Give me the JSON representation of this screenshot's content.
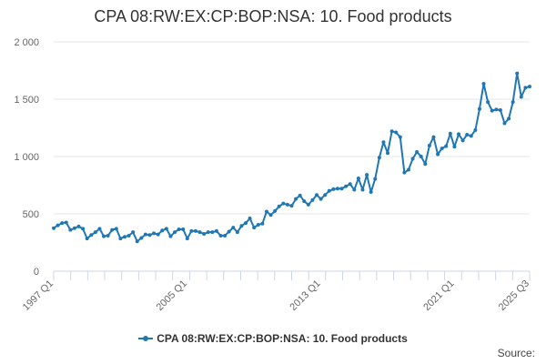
{
  "title": "CPA 08:RW:EX:CP:BOP:NSA: 10. Food products",
  "legend_label": "CPA 08:RW:EX:CP:BOP:NSA: 10. Food products",
  "source_label": "Source:",
  "colors": {
    "series": "#1f77b4",
    "grid": "#e6e6e6",
    "axis": "#ccd6eb",
    "text": "#666666"
  },
  "chart_data": {
    "type": "line",
    "title": "CPA 08:RW:EX:CP:BOP:NSA: 10. Food products",
    "xlabel": "",
    "ylabel": "",
    "ylim": [
      0,
      2000
    ],
    "yticks": [
      0,
      500,
      1000,
      1500,
      2000
    ],
    "ytick_labels": [
      "0",
      "500",
      "1 000",
      "1 500",
      "2 000"
    ],
    "xtick_labels": [
      "1997 Q1",
      "2005 Q1",
      "2013 Q1",
      "2021 Q1",
      "2025 Q3"
    ],
    "xtick_minor_count": 28,
    "x_start": "1997 Q1",
    "x_end": "2025 Q3",
    "grid": true,
    "legend_position": "bottom",
    "series": [
      {
        "name": "CPA 08:RW:EX:CP:BOP:NSA: 10. Food products",
        "x": [
          "1997 Q1",
          "1997 Q2",
          "1997 Q3",
          "1997 Q4",
          "1998 Q1",
          "1998 Q2",
          "1998 Q3",
          "1998 Q4",
          "1999 Q1",
          "1999 Q2",
          "1999 Q3",
          "1999 Q4",
          "2000 Q1",
          "2000 Q2",
          "2000 Q3",
          "2000 Q4",
          "2001 Q1",
          "2001 Q2",
          "2001 Q3",
          "2001 Q4",
          "2002 Q1",
          "2002 Q2",
          "2002 Q3",
          "2002 Q4",
          "2003 Q1",
          "2003 Q2",
          "2003 Q3",
          "2003 Q4",
          "2004 Q1",
          "2004 Q2",
          "2004 Q3",
          "2004 Q4",
          "2005 Q1",
          "2005 Q2",
          "2005 Q3",
          "2005 Q4",
          "2006 Q1",
          "2006 Q2",
          "2006 Q3",
          "2006 Q4",
          "2007 Q1",
          "2007 Q2",
          "2007 Q3",
          "2007 Q4",
          "2008 Q1",
          "2008 Q2",
          "2008 Q3",
          "2008 Q4",
          "2009 Q1",
          "2009 Q2",
          "2009 Q3",
          "2009 Q4",
          "2010 Q1",
          "2010 Q2",
          "2010 Q3",
          "2010 Q4",
          "2011 Q1",
          "2011 Q2",
          "2011 Q3",
          "2011 Q4",
          "2012 Q1",
          "2012 Q2",
          "2012 Q3",
          "2012 Q4",
          "2013 Q1",
          "2013 Q2",
          "2013 Q3",
          "2013 Q4",
          "2014 Q1",
          "2014 Q2",
          "2014 Q3",
          "2014 Q4",
          "2015 Q1",
          "2015 Q2",
          "2015 Q3",
          "2015 Q4",
          "2016 Q1",
          "2016 Q2",
          "2016 Q3",
          "2016 Q4",
          "2017 Q1",
          "2017 Q2",
          "2017 Q3",
          "2017 Q4",
          "2018 Q1",
          "2018 Q2",
          "2018 Q3",
          "2018 Q4",
          "2019 Q1",
          "2019 Q2",
          "2019 Q3",
          "2019 Q4",
          "2020 Q1",
          "2020 Q2",
          "2020 Q3",
          "2020 Q4",
          "2021 Q1",
          "2021 Q2",
          "2021 Q3",
          "2021 Q4",
          "2022 Q1",
          "2022 Q2",
          "2022 Q3",
          "2022 Q4",
          "2023 Q1",
          "2023 Q2",
          "2023 Q3",
          "2023 Q4",
          "2024 Q1",
          "2024 Q2",
          "2024 Q3",
          "2024 Q4",
          "2025 Q1",
          "2025 Q2",
          "2025 Q3"
        ],
        "values": [
          375,
          400,
          420,
          425,
          360,
          375,
          390,
          370,
          285,
          315,
          340,
          370,
          305,
          310,
          360,
          370,
          285,
          300,
          310,
          340,
          260,
          290,
          320,
          315,
          330,
          320,
          355,
          370,
          305,
          340,
          365,
          365,
          285,
          350,
          350,
          340,
          325,
          340,
          340,
          350,
          310,
          310,
          345,
          380,
          340,
          395,
          420,
          460,
          380,
          405,
          415,
          520,
          490,
          525,
          565,
          590,
          580,
          570,
          630,
          660,
          610,
          580,
          620,
          665,
          630,
          665,
          700,
          715,
          720,
          720,
          740,
          760,
          710,
          810,
          710,
          840,
          690,
          805,
          990,
          1125,
          1030,
          1220,
          1210,
          1170,
          860,
          885,
          980,
          1040,
          1000,
          935,
          1095,
          1170,
          1020,
          1070,
          1090,
          1200,
          1085,
          1195,
          1140,
          1190,
          1180,
          1230,
          1415,
          1635,
          1475,
          1400,
          1410,
          1405,
          1290,
          1330,
          1475,
          1725,
          1520,
          1600,
          1610
        ]
      }
    ]
  }
}
